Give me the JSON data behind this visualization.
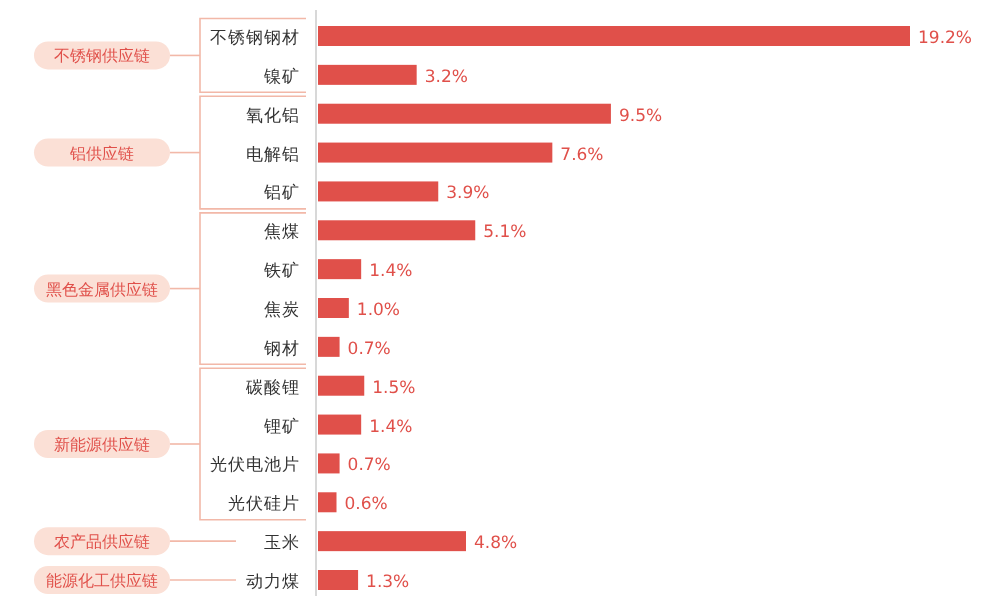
{
  "chart_data": {
    "type": "bar",
    "orientation": "horizontal",
    "color": "#e0504a",
    "categories": [
      "不锈钢钢材",
      "镍矿",
      "氧化铝",
      "电解铝",
      "铝矿",
      "焦煤",
      "铁矿",
      "焦炭",
      "钢材",
      "碳酸锂",
      "锂矿",
      "光伏电池片",
      "光伏硅片",
      "玉米",
      "动力煤"
    ],
    "values": [
      19.2,
      3.2,
      9.5,
      7.6,
      3.9,
      5.1,
      1.4,
      1.0,
      0.7,
      1.5,
      1.4,
      0.7,
      0.6,
      4.8,
      1.3
    ],
    "value_labels": [
      "19.2%",
      "3.2%",
      "9.5%",
      "7.6%",
      "3.9%",
      "5.1%",
      "1.4%",
      "1.0%",
      "0.7%",
      "1.5%",
      "1.4%",
      "0.7%",
      "0.6%",
      "4.8%",
      "1.3%"
    ],
    "annotations": [
      "不锈钢供应链",
      "铝供应链",
      "黑色金属供应链",
      "新能源供应链",
      "农产品供应链",
      "能源化工供应链"
    ]
  }
}
